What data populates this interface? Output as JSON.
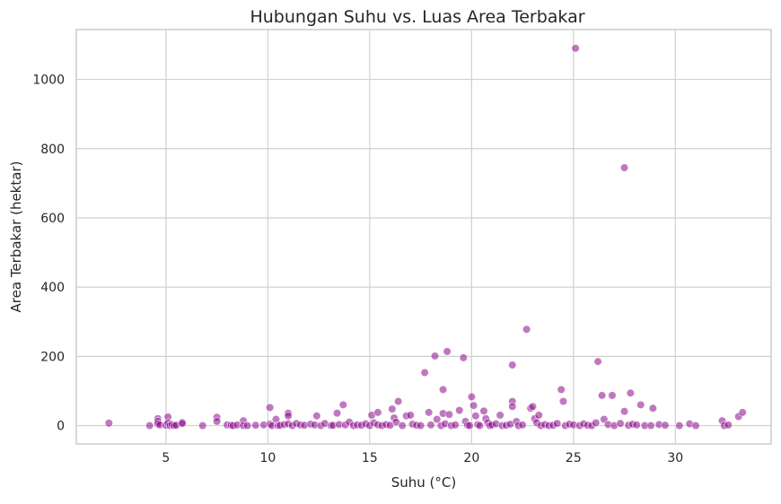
{
  "chart_data": {
    "type": "scatter",
    "title": "Hubungan Suhu vs. Luas Area Terbakar",
    "xlabel": "Suhu (°C)",
    "ylabel": "Area Terbakar (hektar)",
    "xlim": [
      0.6,
      34.7
    ],
    "ylim": [
      -53,
      1144
    ],
    "xticks": [
      5,
      10,
      15,
      20,
      25,
      30
    ],
    "yticks": [
      0,
      200,
      400,
      600,
      800,
      1000
    ],
    "grid": true,
    "legend": "none",
    "marker_color": "#8b0a8b",
    "marker_opacity": 0.55,
    "series": [
      {
        "points": [
          [
            2.2,
            7
          ],
          [
            4.2,
            0
          ],
          [
            4.6,
            20
          ],
          [
            4.6,
            12
          ],
          [
            4.6,
            5
          ],
          [
            4.7,
            2
          ],
          [
            5.0,
            1
          ],
          [
            5.1,
            25
          ],
          [
            5.1,
            8
          ],
          [
            5.2,
            0
          ],
          [
            5.3,
            3
          ],
          [
            5.4,
            0
          ],
          [
            5.5,
            1
          ],
          [
            5.8,
            9
          ],
          [
            5.8,
            6
          ],
          [
            6.8,
            0
          ],
          [
            7.5,
            24
          ],
          [
            7.5,
            12
          ],
          [
            8.0,
            2
          ],
          [
            8.2,
            1
          ],
          [
            8.3,
            0
          ],
          [
            8.5,
            2
          ],
          [
            8.8,
            14
          ],
          [
            8.8,
            0
          ],
          [
            9.0,
            0
          ],
          [
            9.4,
            1
          ],
          [
            9.8,
            2
          ],
          [
            10.1,
            52
          ],
          [
            10.1,
            4
          ],
          [
            10.2,
            0
          ],
          [
            10.4,
            18
          ],
          [
            10.5,
            0
          ],
          [
            10.6,
            1
          ],
          [
            10.8,
            3
          ],
          [
            11.0,
            36
          ],
          [
            11.0,
            28
          ],
          [
            11.0,
            5
          ],
          [
            11.2,
            0
          ],
          [
            11.4,
            6
          ],
          [
            11.6,
            2
          ],
          [
            11.8,
            1
          ],
          [
            12.1,
            4
          ],
          [
            12.3,
            2
          ],
          [
            12.4,
            28
          ],
          [
            12.6,
            0
          ],
          [
            12.8,
            6
          ],
          [
            13.1,
            0
          ],
          [
            13.2,
            1
          ],
          [
            13.4,
            36
          ],
          [
            13.5,
            3
          ],
          [
            13.7,
            60
          ],
          [
            13.8,
            2
          ],
          [
            14.0,
            10
          ],
          [
            14.2,
            0
          ],
          [
            14.4,
            2
          ],
          [
            14.6,
            1
          ],
          [
            14.8,
            5
          ],
          [
            15.0,
            0
          ],
          [
            15.1,
            30
          ],
          [
            15.2,
            8
          ],
          [
            15.4,
            38
          ],
          [
            15.4,
            2
          ],
          [
            15.6,
            0
          ],
          [
            15.8,
            3
          ],
          [
            16.0,
            1
          ],
          [
            16.1,
            48
          ],
          [
            16.2,
            22
          ],
          [
            16.3,
            10
          ],
          [
            16.4,
            70
          ],
          [
            16.6,
            0
          ],
          [
            16.8,
            28
          ],
          [
            17.0,
            30
          ],
          [
            17.1,
            4
          ],
          [
            17.3,
            1
          ],
          [
            17.5,
            0
          ],
          [
            17.7,
            153
          ],
          [
            17.9,
            38
          ],
          [
            18.0,
            2
          ],
          [
            18.2,
            201
          ],
          [
            18.3,
            18
          ],
          [
            18.5,
            0
          ],
          [
            18.6,
            104
          ],
          [
            18.6,
            35
          ],
          [
            18.7,
            5
          ],
          [
            18.8,
            214
          ],
          [
            18.9,
            32
          ],
          [
            19.0,
            0
          ],
          [
            19.2,
            2
          ],
          [
            19.4,
            44
          ],
          [
            19.6,
            196
          ],
          [
            19.7,
            12
          ],
          [
            19.8,
            1
          ],
          [
            19.9,
            0
          ],
          [
            20.0,
            83
          ],
          [
            20.1,
            58
          ],
          [
            20.2,
            28
          ],
          [
            20.3,
            3
          ],
          [
            20.4,
            0
          ],
          [
            20.6,
            42
          ],
          [
            20.7,
            20
          ],
          [
            20.8,
            8
          ],
          [
            20.9,
            0
          ],
          [
            21.0,
            2
          ],
          [
            21.2,
            5
          ],
          [
            21.4,
            30
          ],
          [
            21.5,
            0
          ],
          [
            21.7,
            1
          ],
          [
            21.9,
            4
          ],
          [
            22.0,
            175
          ],
          [
            22.0,
            70
          ],
          [
            22.0,
            55
          ],
          [
            22.2,
            12
          ],
          [
            22.3,
            0
          ],
          [
            22.5,
            2
          ],
          [
            22.7,
            278
          ],
          [
            22.9,
            50
          ],
          [
            23.0,
            55
          ],
          [
            23.1,
            20
          ],
          [
            23.2,
            8
          ],
          [
            23.3,
            30
          ],
          [
            23.4,
            0
          ],
          [
            23.6,
            3
          ],
          [
            23.8,
            0
          ],
          [
            24.0,
            1
          ],
          [
            24.2,
            6
          ],
          [
            24.4,
            104
          ],
          [
            24.5,
            70
          ],
          [
            24.6,
            0
          ],
          [
            24.8,
            4
          ],
          [
            25.0,
            2
          ],
          [
            25.1,
            1090
          ],
          [
            25.3,
            0
          ],
          [
            25.5,
            5
          ],
          [
            25.7,
            1
          ],
          [
            25.9,
            0
          ],
          [
            26.1,
            8
          ],
          [
            26.2,
            185
          ],
          [
            26.4,
            87
          ],
          [
            26.5,
            18
          ],
          [
            26.7,
            3
          ],
          [
            26.9,
            87
          ],
          [
            27.0,
            0
          ],
          [
            27.3,
            6
          ],
          [
            27.5,
            745
          ],
          [
            27.5,
            41
          ],
          [
            27.7,
            1
          ],
          [
            27.8,
            94
          ],
          [
            27.9,
            4
          ],
          [
            28.1,
            2
          ],
          [
            28.3,
            60
          ],
          [
            28.5,
            0
          ],
          [
            28.8,
            0
          ],
          [
            28.9,
            50
          ],
          [
            29.2,
            3
          ],
          [
            29.5,
            1
          ],
          [
            30.2,
            0
          ],
          [
            30.7,
            5
          ],
          [
            31.0,
            0
          ],
          [
            32.3,
            14
          ],
          [
            32.4,
            0
          ],
          [
            32.6,
            2
          ],
          [
            33.1,
            26
          ],
          [
            33.3,
            38
          ]
        ]
      }
    ]
  }
}
